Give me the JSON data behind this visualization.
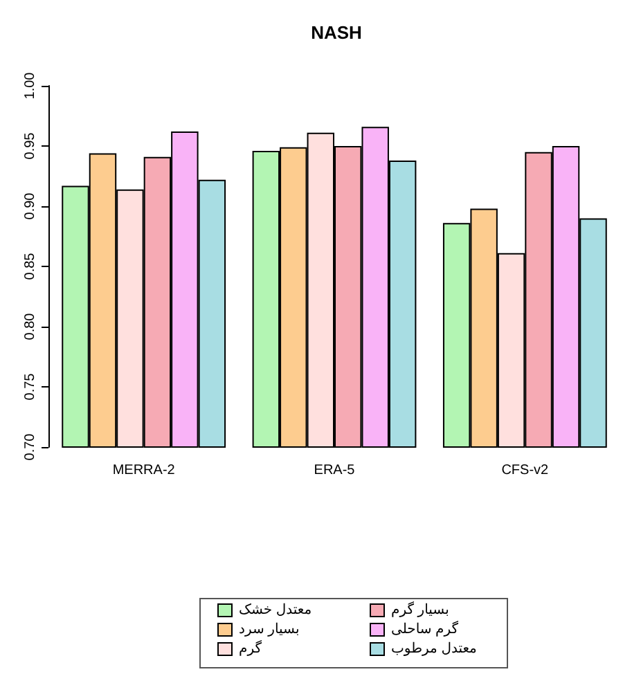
{
  "chart_data": {
    "type": "bar",
    "title": "NASH",
    "categories": [
      "MERRA-2",
      "ERA-5",
      "CFS-v2"
    ],
    "series": [
      {
        "name": "معتدل خشک",
        "color": "#b3f5b3",
        "values": [
          0.917,
          0.946,
          0.886
        ]
      },
      {
        "name": "بسیار سرد",
        "color": "#fdcc8f",
        "values": [
          0.944,
          0.949,
          0.898
        ]
      },
      {
        "name": "گرم",
        "color": "#ffe0de",
        "values": [
          0.914,
          0.961,
          0.861
        ]
      },
      {
        "name": "بسیار گرم",
        "color": "#f6aab4",
        "values": [
          0.941,
          0.95,
          0.945
        ]
      },
      {
        "name": "گرم ساحلی",
        "color": "#f9b3f7",
        "values": [
          0.962,
          0.966,
          0.95
        ]
      },
      {
        "name": "معتدل مرطوب",
        "color": "#a8dde3",
        "values": [
          0.922,
          0.938,
          0.89
        ]
      }
    ],
    "ylim": [
      0.7,
      1.0
    ],
    "yticks": [
      {
        "value": 0.7,
        "label": "0.70"
      },
      {
        "value": 0.75,
        "label": "0.75"
      },
      {
        "value": 0.8,
        "label": "0.80"
      },
      {
        "value": 0.85,
        "label": "0.85"
      },
      {
        "value": 0.9,
        "label": "0.90"
      },
      {
        "value": 0.95,
        "label": "0.95"
      },
      {
        "value": 1.0,
        "label": "1.00"
      }
    ],
    "grid": false,
    "legend": "bottom"
  }
}
